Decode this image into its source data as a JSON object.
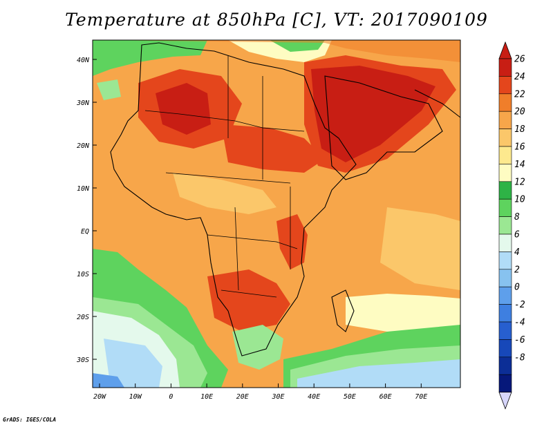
{
  "title": "Temperature at 850hPa [C], VT: 2017090109",
  "credit": "GrADS: IGES/COLA",
  "map": {
    "lat_labels": [
      "40N",
      "30N",
      "20N",
      "10N",
      "EQ",
      "10S",
      "20S",
      "30S"
    ],
    "lon_labels": [
      "20W",
      "10W",
      "0",
      "10E",
      "20E",
      "30E",
      "40E",
      "50E",
      "60E",
      "70E"
    ]
  },
  "colorbar": {
    "labels": [
      "26",
      "24",
      "22",
      "20",
      "18",
      "16",
      "14",
      "12",
      "10",
      "8",
      "6",
      "4",
      "2",
      "0",
      "-2",
      "-4",
      "-6",
      "-8"
    ],
    "colors": [
      "#c81e14",
      "#e4461c",
      "#f07e2a",
      "#f7a64a",
      "#fbc76a",
      "#fde98e",
      "#fefcc2",
      "#2eb346",
      "#5ed35e",
      "#9be793",
      "#e4f9ec",
      "#b1dcf7",
      "#87c2ef",
      "#5e9feb",
      "#3e7fe0",
      "#275fcf",
      "#1748b9",
      "#0c2e96",
      "#06187a"
    ],
    "top_cap_color": "#c81e14",
    "bottom_cap_color": "#d7d6fb"
  }
}
